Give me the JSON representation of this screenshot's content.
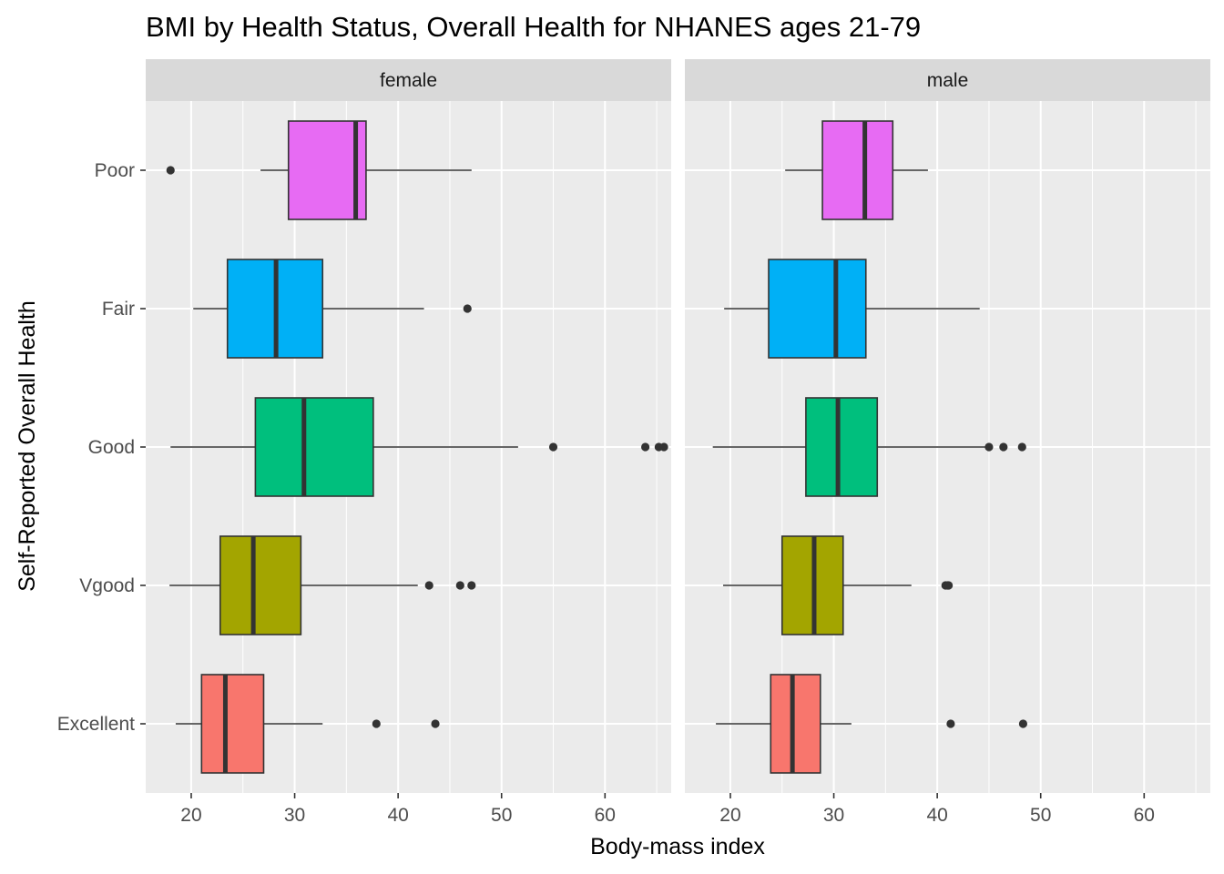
{
  "chart_data": {
    "type": "boxplot",
    "title": "BMI by Health Status, Overall Health for NHANES ages 21-79",
    "xlabel": "Body-mass index",
    "ylabel": "Self-Reported Overall Health",
    "xlim": [
      15.6,
      66.4
    ],
    "x_ticks": [
      20,
      30,
      40,
      50,
      60
    ],
    "categories": [
      "Excellent",
      "Vgood",
      "Good",
      "Fair",
      "Poor"
    ],
    "category_colors": {
      "Excellent": "#F8766D",
      "Vgood": "#A3A500",
      "Good": "#00BF7D",
      "Fair": "#00B0F6",
      "Poor": "#E76BF3"
    },
    "facets": [
      {
        "label": "female",
        "boxes": [
          {
            "category": "Excellent",
            "whisker_low": 18.5,
            "q1": 21.0,
            "median": 23.3,
            "q3": 27.0,
            "whisker_high": 32.7,
            "outliers": [
              37.9,
              43.6
            ]
          },
          {
            "category": "Vgood",
            "whisker_low": 17.9,
            "q1": 22.8,
            "median": 26.0,
            "q3": 30.6,
            "whisker_high": 41.9,
            "outliers": [
              43.0,
              46.0,
              47.1
            ]
          },
          {
            "category": "Good",
            "whisker_low": 18.0,
            "q1": 26.2,
            "median": 30.9,
            "q3": 37.6,
            "whisker_high": 51.6,
            "outliers": [
              55.0,
              63.9,
              65.2,
              65.7
            ]
          },
          {
            "category": "Fair",
            "whisker_low": 20.2,
            "q1": 23.5,
            "median": 28.2,
            "q3": 32.7,
            "whisker_high": 42.5,
            "outliers": [
              46.7
            ]
          },
          {
            "category": "Poor",
            "whisker_low": 26.7,
            "q1": 29.4,
            "median": 35.9,
            "q3": 36.9,
            "whisker_high": 47.1,
            "outliers": [
              18.0
            ]
          }
        ]
      },
      {
        "label": "male",
        "boxes": [
          {
            "category": "Excellent",
            "whisker_low": 18.6,
            "q1": 23.9,
            "median": 26.0,
            "q3": 28.7,
            "whisker_high": 31.7,
            "outliers": [
              41.3,
              48.3
            ]
          },
          {
            "category": "Vgood",
            "whisker_low": 19.3,
            "q1": 25.0,
            "median": 28.1,
            "q3": 30.9,
            "whisker_high": 37.5,
            "outliers": [
              40.8,
              41.0,
              41.1
            ]
          },
          {
            "category": "Good",
            "whisker_low": 18.3,
            "q1": 27.3,
            "median": 30.4,
            "q3": 34.2,
            "whisker_high": 44.7,
            "outliers": [
              45.0,
              46.4,
              48.2
            ]
          },
          {
            "category": "Fair",
            "whisker_low": 19.4,
            "q1": 23.7,
            "median": 30.2,
            "q3": 33.1,
            "whisker_high": 44.1,
            "outliers": []
          },
          {
            "category": "Poor",
            "whisker_low": 25.3,
            "q1": 28.9,
            "median": 33.0,
            "q3": 35.7,
            "whisker_high": 39.1,
            "outliers": []
          }
        ]
      }
    ],
    "grid": true,
    "legend": "none",
    "style": {
      "panel_bg": "#EBEBEB",
      "strip_bg": "#D9D9D9",
      "grid_color": "#FFFFFF",
      "box_stroke": "#333333",
      "outlier_color": "#333333"
    }
  }
}
